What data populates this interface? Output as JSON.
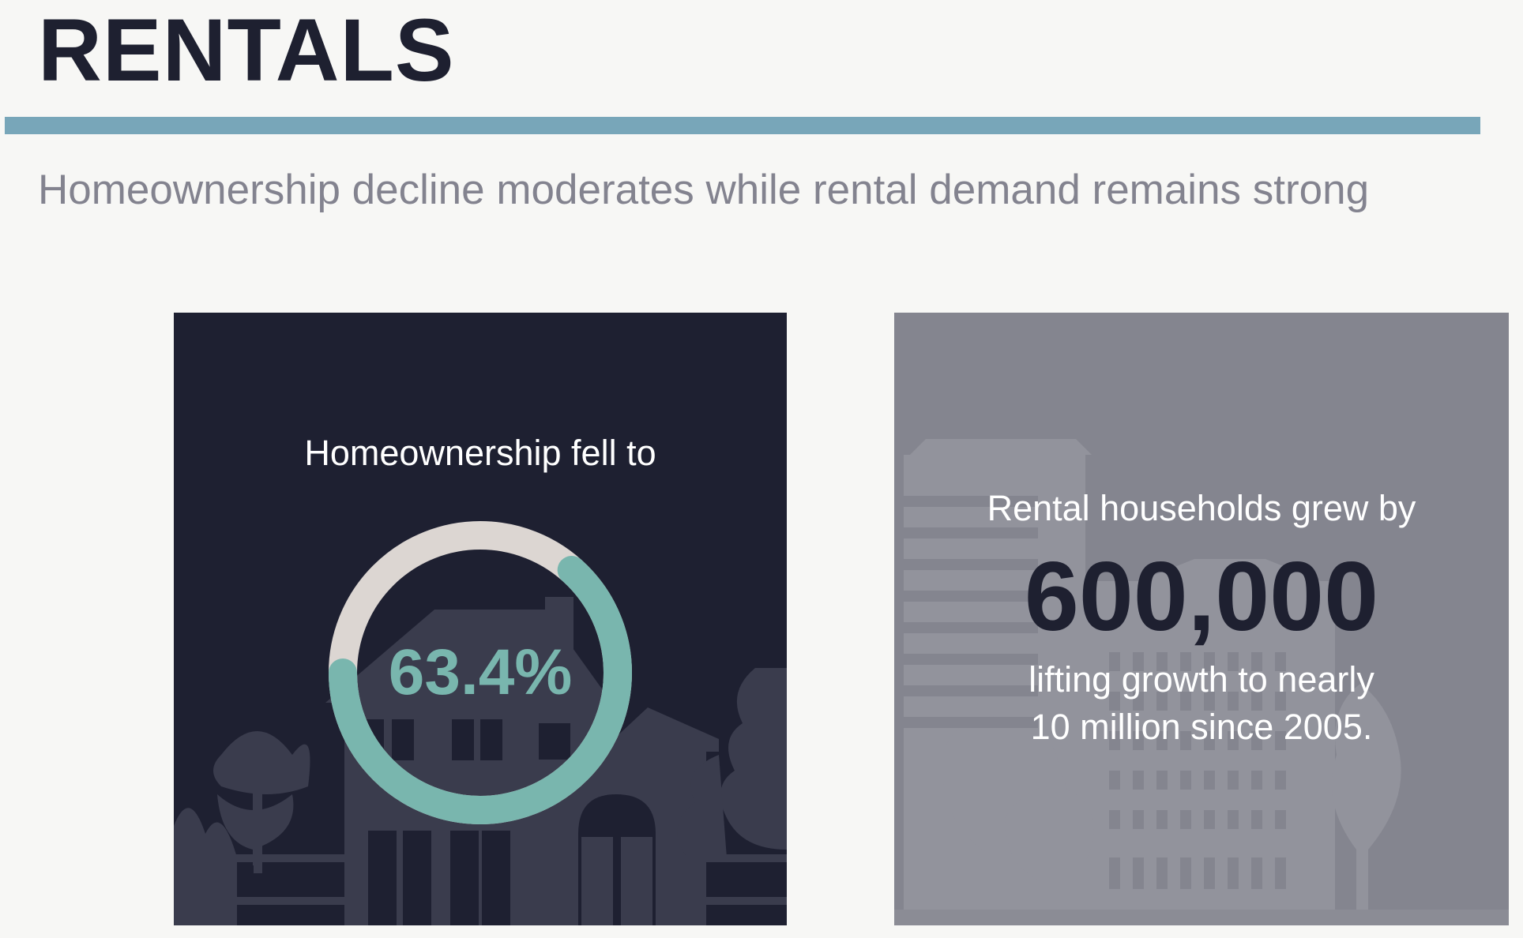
{
  "header": {
    "title": "RENTALS",
    "subtitle": "Homeownership decline moderates while rental demand remains strong"
  },
  "homeownership_panel": {
    "heading": "Homeownership fell to",
    "value_label": "63.4%",
    "percent_value": 63.4,
    "colors": {
      "background": "#1e2031",
      "ring_fill": "#79b6ae",
      "ring_track": "#dcd6d2",
      "value_text": "#79b6ae"
    },
    "illustration": "house-silhouette"
  },
  "rental_panel": {
    "heading": "Rental households grew by",
    "big_number": "600,000",
    "body_line1": "lifting growth to nearly",
    "body_line2": "10 million since 2005.",
    "colors": {
      "background": "#84858f",
      "number_text": "#1e2030"
    },
    "illustration": "city-buildings-silhouette"
  },
  "colors": {
    "accent_rule": "#78a6b9",
    "title": "#1e2030",
    "subtitle": "#83838f"
  }
}
